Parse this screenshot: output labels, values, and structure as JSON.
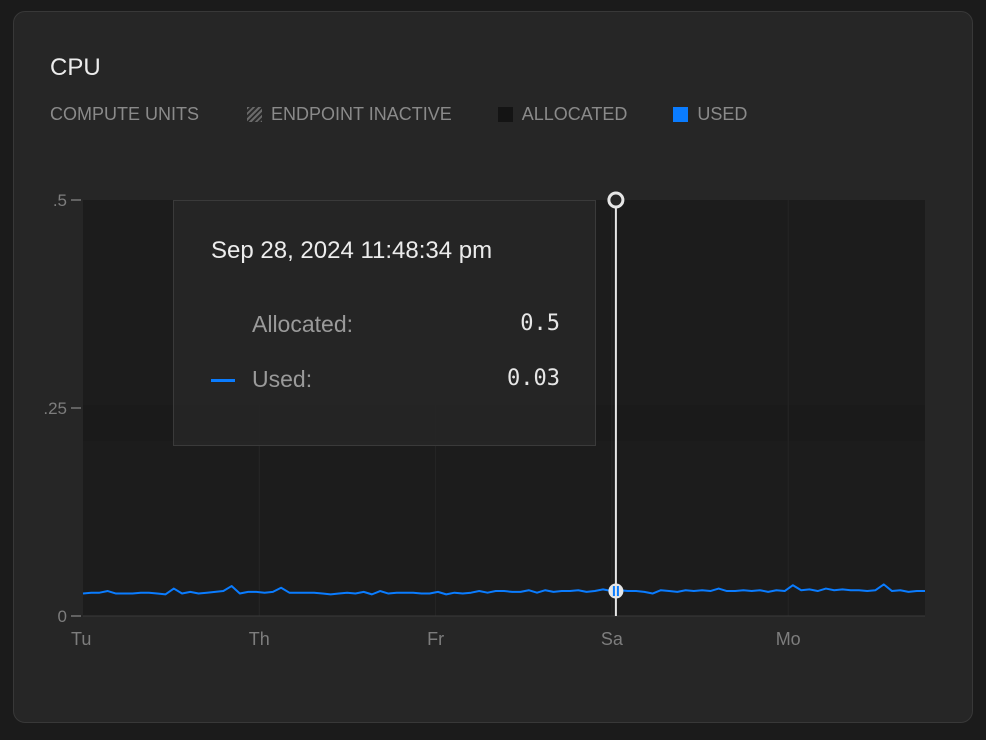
{
  "card": {
    "title": "CPU",
    "legend": {
      "unit_label": "COMPUTE UNITS",
      "items": [
        {
          "label": "ENDPOINT INACTIVE",
          "swatch": "hatched"
        },
        {
          "label": "ALLOCATED",
          "color": "#141414"
        },
        {
          "label": "USED",
          "color": "#0a7cff"
        }
      ]
    }
  },
  "tooltip": {
    "date": "Sep 28, 2024 11:48:34 pm",
    "rows": [
      {
        "label": "Allocated:",
        "value": "0.5"
      },
      {
        "label": "Used:",
        "value": "0.03"
      }
    ]
  },
  "chart_data": {
    "type": "line",
    "ylim": [
      0,
      0.5
    ],
    "y_ticks": [
      ".5",
      ".25",
      "0"
    ],
    "y_tick_values": [
      0.5,
      0.25,
      0
    ],
    "x_ticks": [
      "Tu",
      "Th",
      "Fr",
      "Sa",
      "Mo"
    ],
    "grid": true,
    "series": [
      {
        "name": "Allocated",
        "color": "#141414",
        "constant": 0.5
      },
      {
        "name": "Used",
        "color": "#0a7cff",
        "values": [
          0.027,
          0.028,
          0.028,
          0.03,
          0.027,
          0.027,
          0.027,
          0.028,
          0.028,
          0.027,
          0.026,
          0.033,
          0.027,
          0.029,
          0.027,
          0.028,
          0.029,
          0.03,
          0.036,
          0.027,
          0.029,
          0.029,
          0.028,
          0.029,
          0.034,
          0.028,
          0.028,
          0.028,
          0.028,
          0.027,
          0.026,
          0.027,
          0.028,
          0.027,
          0.029,
          0.026,
          0.03,
          0.027,
          0.028,
          0.028,
          0.028,
          0.027,
          0.027,
          0.029,
          0.026,
          0.028,
          0.027,
          0.028,
          0.03,
          0.028,
          0.03,
          0.03,
          0.029,
          0.029,
          0.031,
          0.028,
          0.031,
          0.029,
          0.03,
          0.03,
          0.031,
          0.029,
          0.03,
          0.032,
          0.03,
          0.031,
          0.03,
          0.03,
          0.029,
          0.027,
          0.031,
          0.03,
          0.029,
          0.031,
          0.03,
          0.031,
          0.03,
          0.033,
          0.03,
          0.03,
          0.031,
          0.03,
          0.031,
          0.029,
          0.031,
          0.03,
          0.037,
          0.031,
          0.032,
          0.03,
          0.033,
          0.031,
          0.032,
          0.031,
          0.031,
          0.03,
          0.031,
          0.038,
          0.03,
          0.031,
          0.029,
          0.03,
          0.03
        ]
      }
    ],
    "cursor": {
      "x_label": "Sa",
      "used": 0.03,
      "allocated": 0.5
    }
  }
}
